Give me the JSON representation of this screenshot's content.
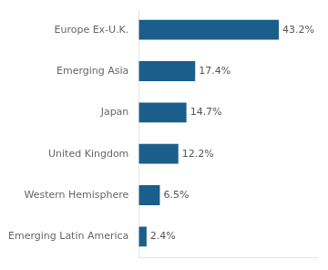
{
  "chart_data": {
    "type": "bar",
    "orientation": "horizontal",
    "categories": [
      "Emerging Latin America",
      "Western Hemisphere",
      "United Kingdom",
      "Japan",
      "Emerging Asia",
      "Europe Ex-U.K."
    ],
    "values": [
      2.4,
      6.5,
      12.2,
      14.7,
      17.4,
      43.2
    ],
    "value_labels": [
      "2.4%",
      "6.5%",
      "12.2%",
      "14.7%",
      "17.4%",
      "43.2%"
    ],
    "data_labels": true,
    "color": "#1b5e8b",
    "xlim": [
      0,
      55
    ],
    "xticks": [],
    "tick_labels": "y",
    "grid": false
  }
}
